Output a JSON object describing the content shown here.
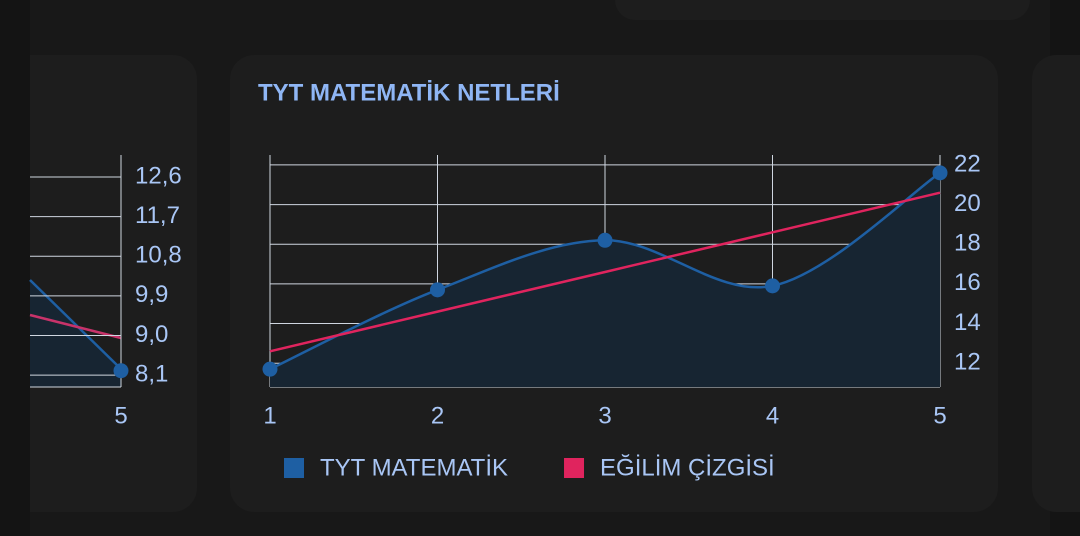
{
  "chart_data": [
    {
      "type": "line",
      "x": [
        5
      ],
      "xticks": [
        5
      ],
      "ylim": [
        7.83,
        13.1
      ],
      "yticks": [
        {
          "value": 8.1,
          "label": "8,1"
        },
        {
          "value": 9.0,
          "label": "9,0"
        },
        {
          "value": 9.9,
          "label": "9,9"
        },
        {
          "value": 10.8,
          "label": "10,8"
        },
        {
          "value": 11.7,
          "label": "11,7"
        },
        {
          "value": 12.6,
          "label": "12,6"
        }
      ],
      "grid": true,
      "series": [
        {
          "color": "#1e5fa3",
          "values": [
            8.2
          ]
        },
        {
          "color": "#c8336a",
          "values": [
            8.9
          ]
        }
      ]
    },
    {
      "type": "line",
      "title": "TYT MATEMATİK NETLERİ",
      "x": [
        1,
        2,
        3,
        4,
        5
      ],
      "xlim": [
        1,
        5
      ],
      "xticks": [
        1,
        2,
        3,
        4,
        5
      ],
      "ylim": [
        10.8,
        22.5
      ],
      "yticks": [
        12,
        14,
        16,
        18,
        20,
        22
      ],
      "grid": true,
      "legend": "bottom",
      "series": [
        {
          "name": "TYT MATEMATİK",
          "color": "#1e5fa3",
          "values": [
            11.7,
            15.7,
            18.2,
            15.9,
            21.6
          ]
        },
        {
          "name": "EĞİLİM ÇİZGİSİ",
          "color": "#e0245e",
          "values": [
            12.6,
            14.6,
            16.6,
            18.6,
            20.6
          ]
        }
      ]
    }
  ]
}
